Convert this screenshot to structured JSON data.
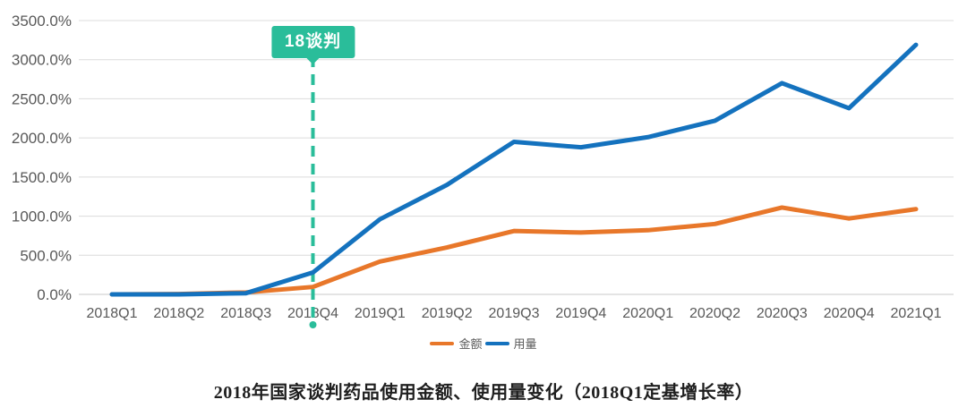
{
  "chart_data": {
    "type": "line",
    "title": "2018年国家谈判药品使用金额、使用量变化（2018Q1定基增长率）",
    "categories": [
      "2018Q1",
      "2018Q2",
      "2018Q3",
      "2018Q4",
      "2019Q1",
      "2019Q2",
      "2019Q3",
      "2019Q4",
      "2020Q1",
      "2020Q2",
      "2020Q3",
      "2020Q4",
      "2021Q1"
    ],
    "series": [
      {
        "name": "金额",
        "color": "#e8772a",
        "values": [
          0,
          5,
          25,
          95,
          420,
          600,
          810,
          790,
          820,
          900,
          1110,
          970,
          1090
        ]
      },
      {
        "name": "用量",
        "color": "#1472be",
        "values": [
          0,
          0,
          15,
          280,
          960,
          1400,
          1950,
          1880,
          2010,
          2220,
          2700,
          2380,
          3190
        ]
      }
    ],
    "ylim": [
      0,
      3500
    ],
    "ytick_step": 500,
    "ytick_labels": [
      "0.0%",
      "500.0%",
      "1000.0%",
      "1500.0%",
      "2000.0%",
      "2500.0%",
      "3000.0%",
      "3500.0%"
    ],
    "grid": true,
    "legend_position": "bottom",
    "annotation": {
      "label": "18谈判",
      "x_category": "2018Q4",
      "color": "#2abd9a"
    }
  },
  "colors": {
    "grid": "#dcdcdc",
    "zero_line": "#c9c9c9",
    "tick_text": "#595959",
    "title_text": "#1f1f1f"
  }
}
